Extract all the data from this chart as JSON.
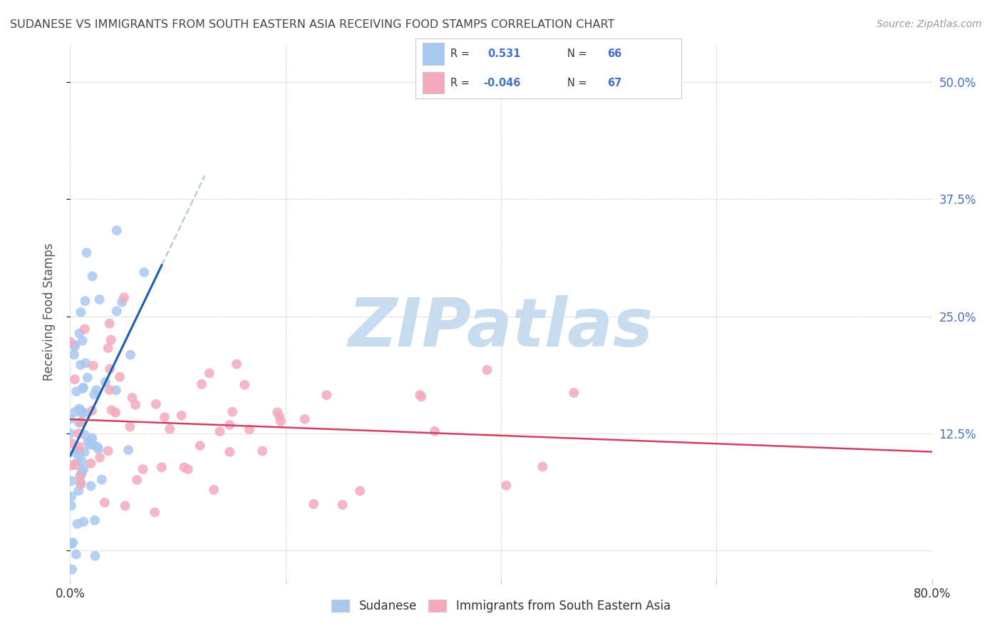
{
  "title": "SUDANESE VS IMMIGRANTS FROM SOUTH EASTERN ASIA RECEIVING FOOD STAMPS CORRELATION CHART",
  "source": "Source: ZipAtlas.com",
  "ylabel": "Receiving Food Stamps",
  "xlim": [
    0.0,
    0.8
  ],
  "ylim": [
    -0.03,
    0.54
  ],
  "blue_R": 0.531,
  "blue_N": 66,
  "pink_R": -0.046,
  "pink_N": 67,
  "blue_color": "#A8C8F0",
  "pink_color": "#F4AABB",
  "blue_line_color": "#1A5FB4",
  "pink_line_color": "#D04060",
  "dashed_color": "#BBCCDD",
  "watermark_color": "#C8DCF0",
  "legend_label_blue": "Sudanese",
  "legend_label_pink": "Immigrants from South Eastern Asia",
  "background_color": "#FFFFFF",
  "grid_color": "#CCCCCC",
  "title_color": "#444444",
  "axis_label_color": "#4472C4",
  "blue_seed": 7,
  "pink_seed": 13
}
